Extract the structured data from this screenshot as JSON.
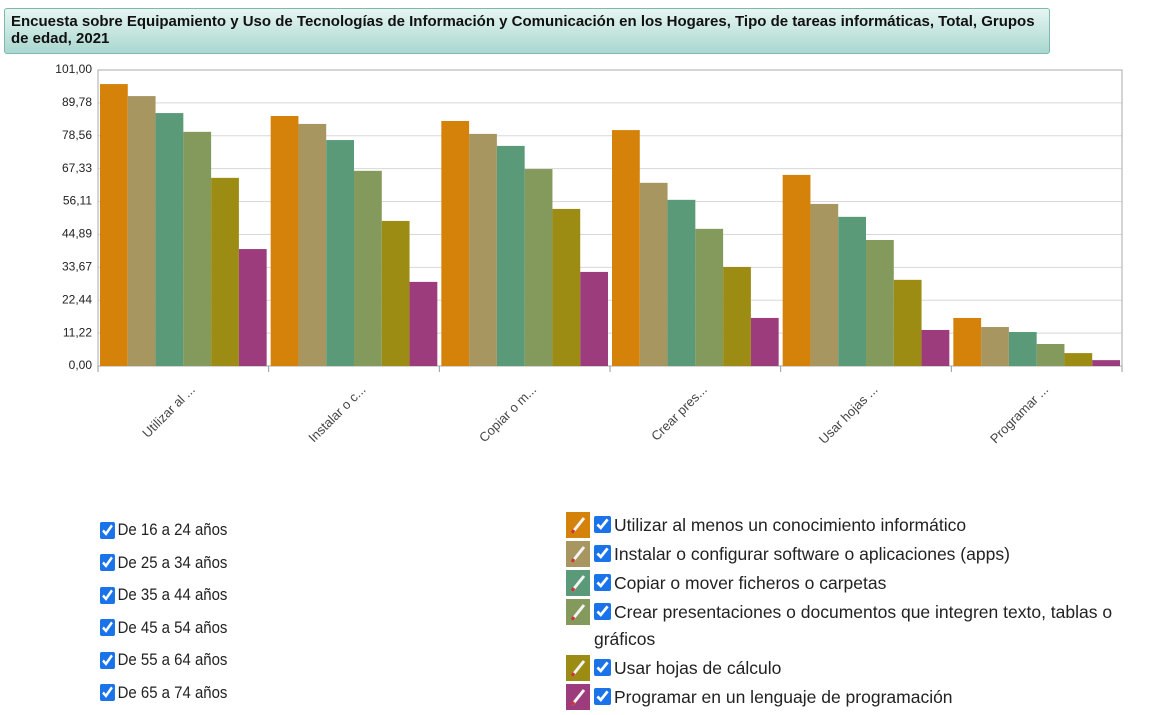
{
  "chart_data": {
    "type": "bar",
    "title": "Encuesta sobre Equipamiento y Uso de Tecnologías de Información y Comunicación en los Hogares, Tipo de tareas informáticas, Total, Grupos de edad, 2021",
    "categories": [
      "Utilizar al ...",
      "Instalar o c...",
      "Copiar o m...",
      "Crear pres...",
      "Usar hojas ...",
      "Programar ..."
    ],
    "category_legend": [
      "Utilizar al menos un conocimiento informático",
      "Instalar o configurar software o aplicaciones (apps)",
      "Copiar o mover ficheros o carpetas",
      "Crear presentaciones o documentos que integren texto, tablas o gráficos",
      "Usar hojas de cálculo",
      "Programar en un lenguaje de programación"
    ],
    "series": [
      {
        "name": "De 16 a 24 años",
        "color": "#d4820a",
        "values": [
          96.2,
          85.3,
          83.6,
          80.5,
          65.2,
          16.4
        ]
      },
      {
        "name": "De 25 a 34 años",
        "color": "#a89660",
        "values": [
          92.1,
          82.6,
          79.2,
          62.5,
          55.3,
          13.3
        ]
      },
      {
        "name": "De 35 a 44 años",
        "color": "#5a9a78",
        "values": [
          86.3,
          77.1,
          75.1,
          56.7,
          50.9,
          11.6
        ]
      },
      {
        "name": "De 45 a 54 años",
        "color": "#84995c",
        "values": [
          79.9,
          66.6,
          67.2,
          46.8,
          43.0,
          7.5
        ]
      },
      {
        "name": "De 55 a 64 años",
        "color": "#9c8c14",
        "values": [
          64.2,
          49.5,
          53.6,
          33.8,
          29.4,
          4.4
        ]
      },
      {
        "name": "De 65 a 74 años",
        "color": "#9c3c7c",
        "values": [
          39.9,
          28.7,
          32.1,
          16.4,
          12.3,
          2.0
        ]
      }
    ],
    "ylim": [
      0,
      101
    ],
    "yticks": [
      {
        "value": 0,
        "label": "0,00"
      },
      {
        "value": 11.22,
        "label": "11,22"
      },
      {
        "value": 22.44,
        "label": "22,44"
      },
      {
        "value": 33.67,
        "label": "33,67"
      },
      {
        "value": 44.89,
        "label": "44,89"
      },
      {
        "value": 56.11,
        "label": "56,11"
      },
      {
        "value": 67.33,
        "label": "67,33"
      },
      {
        "value": 78.56,
        "label": "78,56"
      },
      {
        "value": 89.78,
        "label": "89,78"
      },
      {
        "value": 101,
        "label": "101,00"
      }
    ],
    "grid": true
  }
}
